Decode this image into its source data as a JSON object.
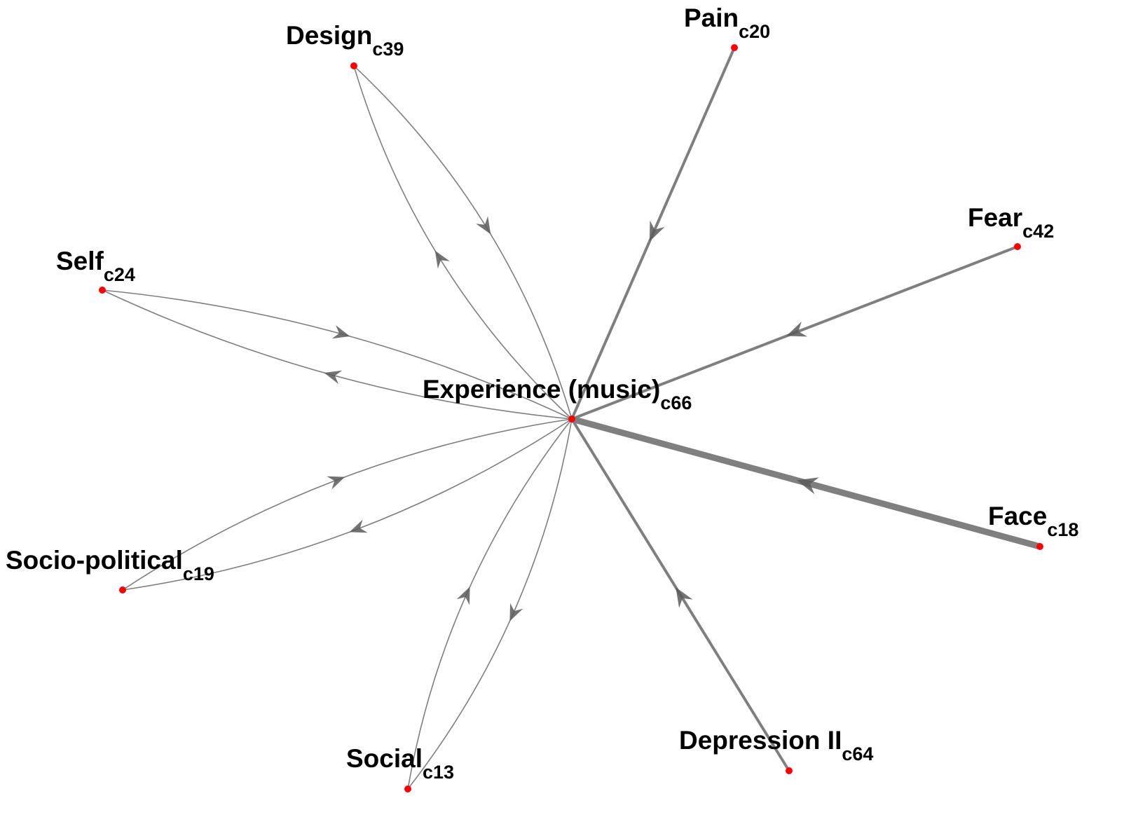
{
  "colors": {
    "edge": "#7f7f7f",
    "arrow": "#5a5a5a",
    "node": "#ff0000",
    "label": "#000000"
  },
  "hub": {
    "id": "experience",
    "label": "Experience (music)",
    "code": "c66"
  },
  "nodes": [
    {
      "id": "pain",
      "label": "Pain",
      "code": "c20"
    },
    {
      "id": "design",
      "label": "Design",
      "code": "c39"
    },
    {
      "id": "fear",
      "label": "Fear",
      "code": "c42"
    },
    {
      "id": "self",
      "label": "Self",
      "code": "c24"
    },
    {
      "id": "face",
      "label": "Face",
      "code": "c18"
    },
    {
      "id": "socio-political",
      "label": "Socio-political",
      "code": "c19"
    },
    {
      "id": "social",
      "label": "Social",
      "code": "c13"
    },
    {
      "id": "depression",
      "label": "Depression II",
      "code": "c64"
    }
  ],
  "edges": [
    {
      "from": "pain",
      "to": "experience",
      "weight": 2
    },
    {
      "from": "fear",
      "to": "experience",
      "weight": 2
    },
    {
      "from": "face",
      "to": "experience",
      "weight": 4
    },
    {
      "from": "depression",
      "to": "experience",
      "weight": 2
    },
    {
      "from": "design",
      "to": "experience",
      "weight": 1
    },
    {
      "from": "experience",
      "to": "design",
      "weight": 1
    },
    {
      "from": "self",
      "to": "experience",
      "weight": 1
    },
    {
      "from": "experience",
      "to": "self",
      "weight": 1
    },
    {
      "from": "socio-political",
      "to": "experience",
      "weight": 1
    },
    {
      "from": "experience",
      "to": "socio-political",
      "weight": 1
    },
    {
      "from": "social",
      "to": "experience",
      "weight": 1
    },
    {
      "from": "experience",
      "to": "social",
      "weight": 1
    }
  ]
}
